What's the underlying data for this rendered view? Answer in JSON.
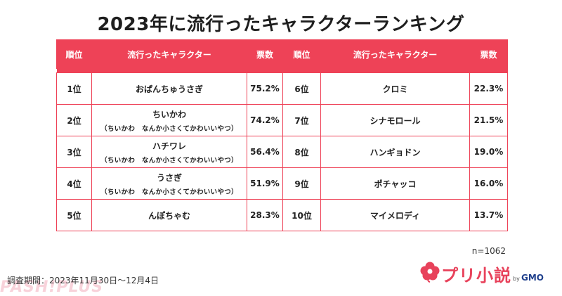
{
  "title": "2023年に流行ったキャラクターランキング",
  "headers": {
    "rank": "順位",
    "character": "流行ったキャラクター",
    "votes": "票数"
  },
  "rows": [
    {
      "left": {
        "rank": "1位",
        "name": "おぱんちゅうさぎ",
        "sub": "",
        "votes": "75.2%"
      },
      "right": {
        "rank": "6位",
        "name": "クロミ",
        "votes": "22.3%"
      }
    },
    {
      "left": {
        "rank": "2位",
        "name": "ちいかわ",
        "sub": "（ちいかわ　なんか小さくてかわいいやつ）",
        "votes": "74.2%"
      },
      "right": {
        "rank": "7位",
        "name": "シナモロール",
        "votes": "21.5%"
      }
    },
    {
      "left": {
        "rank": "3位",
        "name": "ハチワレ",
        "sub": "（ちいかわ　なんか小さくてかわいいやつ）",
        "votes": "56.4%"
      },
      "right": {
        "rank": "8位",
        "name": "ハンギョドン",
        "votes": "19.0%"
      }
    },
    {
      "left": {
        "rank": "4位",
        "name": "うさぎ",
        "sub": "（ちいかわ　なんか小さくてかわいいやつ）",
        "votes": "51.9%"
      },
      "right": {
        "rank": "9位",
        "name": "ポチャッコ",
        "votes": "16.0%"
      }
    },
    {
      "left": {
        "rank": "5位",
        "name": "んぽちゃむ",
        "sub": "",
        "votes": "28.3%"
      },
      "right": {
        "rank": "10位",
        "name": "マイメロディ",
        "votes": "13.7%"
      }
    }
  ],
  "sample_size": "n=1062",
  "survey_period": "調査期間：2023年11月30日〜12月4日",
  "logo": {
    "text": "プリ小説",
    "by": "by",
    "company": "GMO",
    "icon": "flower-icon"
  },
  "watermark": "PASH!PLUS",
  "colors": {
    "accent": "#ee4257",
    "logo": "#e8425b",
    "gmo": "#1f3f8c"
  }
}
